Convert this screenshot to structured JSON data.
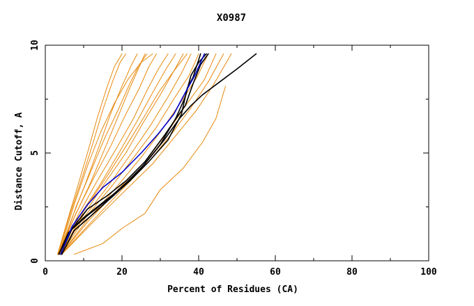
{
  "chart_data": {
    "type": "line",
    "title": "X0987",
    "xlabel": "Percent of Residues (CA)",
    "ylabel": "Distance Cutoff, A",
    "xlim": [
      0,
      100
    ],
    "ylim": [
      0,
      10
    ],
    "x_ticks": [
      0,
      20,
      40,
      60,
      80,
      100
    ],
    "y_ticks": [
      0,
      5,
      10
    ],
    "x_minor_ticks": [
      10,
      30,
      50,
      70,
      90
    ],
    "y_minor_ticks": [
      2.5,
      7.5
    ],
    "grid": false,
    "colors": {
      "orange": "#e8890c",
      "black": "#000000",
      "blue": "#0000cc"
    },
    "series": [
      {
        "color": "orange",
        "x": [
          3.2,
          6.0,
          8.5,
          11.0,
          13.5,
          16.0,
          18.0,
          20.0
        ],
        "y": [
          0.3,
          2.0,
          3.5,
          5.0,
          6.6,
          8.0,
          9.0,
          9.6
        ]
      },
      {
        "color": "orange",
        "x": [
          3.3,
          6.5,
          9.5,
          12.5,
          15.0,
          17.5,
          19.5,
          21.0
        ],
        "y": [
          0.3,
          2.2,
          3.8,
          5.5,
          7.0,
          8.3,
          9.2,
          9.6
        ]
      },
      {
        "color": "orange",
        "x": [
          3.5,
          7.0,
          10.5,
          14.0,
          17.0,
          20.0,
          22.5,
          24.0
        ],
        "y": [
          0.3,
          2.0,
          3.6,
          5.3,
          6.8,
          8.1,
          9.1,
          9.6
        ]
      },
      {
        "color": "orange",
        "x": [
          3.6,
          7.5,
          11.5,
          15.5,
          19.0,
          22.0,
          24.5,
          26.0
        ],
        "y": [
          0.3,
          2.0,
          3.5,
          5.2,
          6.7,
          8.0,
          9.0,
          9.6
        ]
      },
      {
        "color": "orange",
        "x": [
          3.4,
          8.0,
          12.5,
          17.0,
          21.0,
          24.5,
          27.0,
          29.0
        ],
        "y": [
          0.3,
          2.2,
          3.8,
          5.3,
          6.8,
          8.0,
          9.0,
          9.6
        ]
      },
      {
        "color": "orange",
        "x": [
          3.7,
          8.5,
          13.5,
          18.5,
          23.0,
          26.5,
          29.5,
          32.0
        ],
        "y": [
          0.3,
          2.1,
          3.7,
          5.2,
          6.6,
          7.9,
          8.9,
          9.6
        ]
      },
      {
        "color": "orange",
        "x": [
          3.5,
          9.0,
          14.5,
          19.5,
          24.0,
          28.0,
          31.5,
          34.0
        ],
        "y": [
          0.3,
          2.1,
          3.6,
          5.1,
          6.5,
          7.8,
          8.9,
          9.6
        ]
      },
      {
        "color": "orange",
        "x": [
          3.8,
          9.5,
          15.5,
          21.0,
          25.5,
          30.0,
          33.5,
          36.0
        ],
        "y": [
          0.3,
          2.0,
          3.6,
          5.0,
          6.4,
          7.7,
          8.8,
          9.6
        ]
      },
      {
        "color": "orange",
        "x": [
          3.6,
          10.0,
          16.5,
          22.5,
          27.5,
          32.0,
          35.5,
          38.0
        ],
        "y": [
          0.3,
          2.0,
          3.5,
          5.0,
          6.3,
          7.6,
          8.7,
          9.6
        ]
      },
      {
        "color": "orange",
        "x": [
          3.9,
          10.5,
          17.5,
          23.5,
          29.0,
          33.5,
          37.5,
          40.0
        ],
        "y": [
          0.3,
          2.0,
          3.5,
          4.9,
          6.2,
          7.5,
          8.6,
          9.6
        ]
      },
      {
        "color": "orange",
        "x": [
          4.0,
          11.0,
          18.5,
          25.0,
          30.5,
          35.5,
          39.5,
          42.5
        ],
        "y": [
          0.3,
          1.9,
          3.4,
          4.8,
          6.1,
          7.4,
          8.5,
          9.6
        ]
      },
      {
        "color": "orange",
        "x": [
          4.1,
          11.5,
          19.5,
          26.5,
          32.0,
          37.0,
          41.5,
          44.5
        ],
        "y": [
          0.3,
          1.9,
          3.4,
          4.7,
          6.0,
          7.3,
          8.4,
          9.6
        ]
      },
      {
        "color": "orange",
        "x": [
          4.2,
          12.0,
          20.0,
          27.0,
          33.0,
          38.0,
          42.5,
          46.5
        ],
        "y": [
          0.3,
          1.8,
          3.3,
          4.6,
          5.9,
          7.1,
          8.3,
          9.6
        ]
      },
      {
        "color": "orange",
        "x": [
          4.3,
          12.5,
          20.5,
          28.0,
          34.0,
          39.5,
          44.0,
          48.5
        ],
        "y": [
          0.3,
          1.8,
          3.2,
          4.5,
          5.8,
          7.0,
          8.2,
          9.6
        ]
      },
      {
        "color": "orange",
        "x": [
          4.0,
          10.0,
          16.0,
          21.0,
          25.5,
          29.5,
          33.5,
          37.0
        ],
        "y": [
          0.3,
          2.3,
          3.9,
          5.3,
          6.6,
          7.8,
          8.8,
          9.6
        ]
      },
      {
        "color": "orange",
        "x": [
          3.8,
          8.0,
          12.0,
          15.5,
          19.0,
          22.0,
          24.5,
          26.5
        ],
        "y": [
          0.3,
          2.5,
          4.2,
          5.7,
          7.0,
          8.2,
          9.1,
          9.6
        ]
      },
      {
        "color": "orange",
        "x": [
          3.5,
          7.5,
          11.0,
          14.5,
          18.0,
          21.5,
          25.0,
          28.0
        ],
        "y": [
          0.3,
          2.6,
          4.4,
          6.0,
          7.3,
          8.4,
          9.2,
          9.6
        ]
      },
      {
        "color": "orange",
        "x": [
          7.5,
          15.0,
          20.0,
          26.0,
          30.0,
          36.0,
          41.0,
          44.5,
          47.0
        ],
        "y": [
          0.3,
          0.8,
          1.5,
          2.2,
          3.3,
          4.3,
          5.5,
          6.6,
          8.1
        ]
      },
      {
        "color": "black",
        "x": [
          3.5,
          6.0,
          10.0,
          15.0,
          20.0,
          25.0,
          30.0,
          34.0,
          36.5,
          38.0,
          40.0,
          42.0
        ],
        "y": [
          0.3,
          1.3,
          2.0,
          2.7,
          3.4,
          4.3,
          5.4,
          6.6,
          7.6,
          8.6,
          9.2,
          9.6
        ]
      },
      {
        "color": "black",
        "x": [
          4.0,
          7.0,
          11.0,
          16.0,
          21.0,
          26.0,
          31.0,
          34.5,
          36.5,
          38.5,
          40.5,
          42.5
        ],
        "y": [
          0.3,
          1.5,
          2.4,
          3.0,
          3.7,
          4.6,
          5.8,
          6.7,
          7.2,
          8.2,
          9.1,
          9.6
        ]
      },
      {
        "color": "black",
        "x": [
          4.3,
          7.5,
          12.0,
          17.0,
          22.0,
          27.0,
          32.0,
          35.5,
          37.0,
          38.5,
          40.5
        ],
        "y": [
          0.3,
          1.4,
          2.1,
          2.9,
          3.7,
          4.6,
          5.6,
          6.8,
          8.0,
          8.5,
          9.6
        ]
      },
      {
        "color": "black",
        "x": [
          3.5,
          6.5,
          11.0,
          16.0,
          21.0,
          26.0,
          31.0,
          35.0,
          38.0,
          41.0,
          45.5,
          50.0,
          55.0
        ],
        "y": [
          0.3,
          1.4,
          2.1,
          2.8,
          3.6,
          4.5,
          5.6,
          6.6,
          7.2,
          7.7,
          8.3,
          8.9,
          9.6
        ]
      },
      {
        "color": "blue",
        "x": [
          4.0,
          7.0,
          11.0,
          15.0,
          20.0,
          25.0,
          29.5,
          33.5,
          36.5,
          39.0,
          41.5
        ],
        "y": [
          0.3,
          1.6,
          2.6,
          3.4,
          4.1,
          5.0,
          5.9,
          6.8,
          7.8,
          8.6,
          9.6
        ]
      }
    ]
  }
}
